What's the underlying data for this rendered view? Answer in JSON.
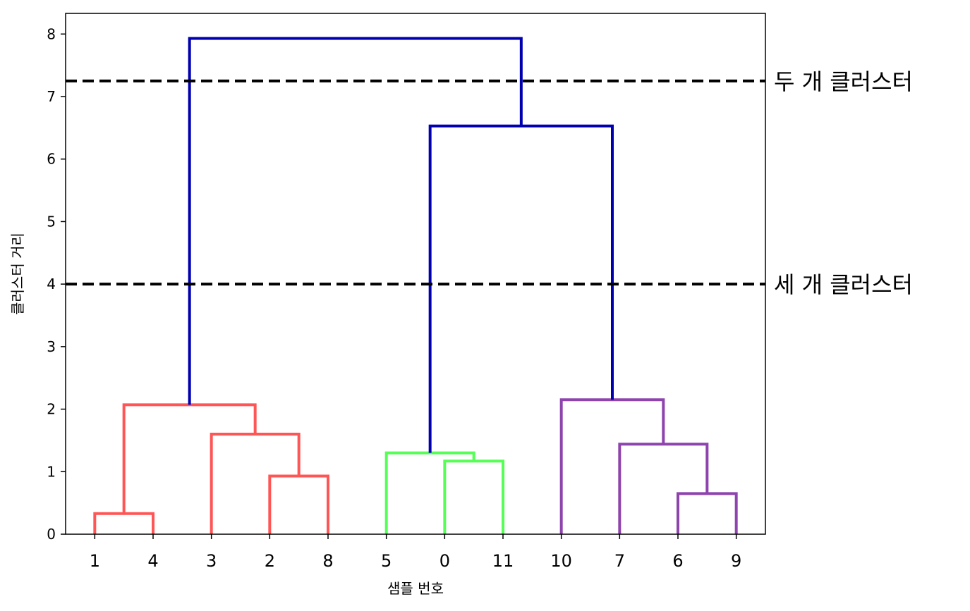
{
  "chart_data": {
    "type": "dendrogram",
    "xlabel": "샘플 번호",
    "ylabel": "클러스터 거리",
    "ylim": [
      0,
      8.33
    ],
    "yticks": [
      0,
      1,
      2,
      3,
      4,
      5,
      6,
      7,
      8
    ],
    "leaves": [
      "1",
      "4",
      "3",
      "2",
      "8",
      "5",
      "0",
      "11",
      "10",
      "7",
      "6",
      "9"
    ],
    "colors": {
      "red": "#ff5555",
      "green": "#55ff55",
      "purple": "#8e44ad",
      "blue": "#0000b0",
      "cut": "#000000"
    },
    "merges": [
      {
        "name": "merge-1-4",
        "left": "1",
        "right": "4",
        "height": 0.33,
        "color": "red"
      },
      {
        "name": "merge-2-8",
        "left": "2",
        "right": "8",
        "height": 0.93,
        "color": "red"
      },
      {
        "name": "merge-3-28",
        "left": "3",
        "right": "merge-2-8",
        "height": 1.6,
        "color": "red"
      },
      {
        "name": "merge-red",
        "left": "merge-1-4",
        "right": "merge-3-28",
        "height": 2.07,
        "color": "red"
      },
      {
        "name": "merge-0-11",
        "left": "0",
        "right": "11",
        "height": 1.17,
        "color": "green"
      },
      {
        "name": "merge-green",
        "left": "5",
        "right": "merge-0-11",
        "height": 1.3,
        "color": "green"
      },
      {
        "name": "merge-6-9",
        "left": "6",
        "right": "9",
        "height": 0.65,
        "color": "purple"
      },
      {
        "name": "merge-7-69",
        "left": "7",
        "right": "merge-6-9",
        "height": 1.44,
        "color": "purple"
      },
      {
        "name": "merge-purple",
        "left": "10",
        "right": "merge-7-69",
        "height": 2.15,
        "color": "purple"
      },
      {
        "name": "merge-green-purple",
        "left": "merge-green",
        "right": "merge-purple",
        "height": 6.53,
        "color": "blue"
      },
      {
        "name": "merge-root",
        "left": "merge-red",
        "right": "merge-green-purple",
        "height": 7.93,
        "color": "blue"
      }
    ],
    "cut_lines": [
      {
        "name": "two-clusters",
        "y": 7.25,
        "label": "두 개 클러스터"
      },
      {
        "name": "three-clusters",
        "y": 4.0,
        "label": "세 개 클러스터"
      }
    ]
  }
}
